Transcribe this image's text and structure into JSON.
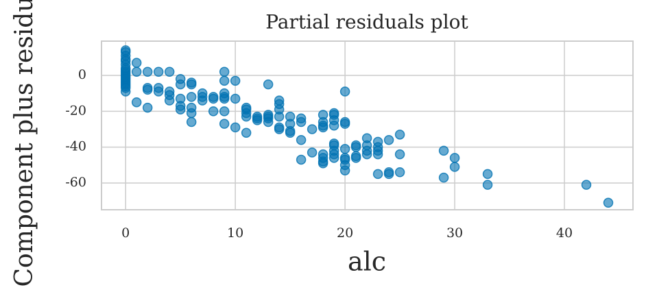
{
  "chart_data": {
    "type": "scatter",
    "title": "Partial residuals plot",
    "x_label": "alc",
    "y_label": "Component plus residual",
    "color": "#0072b2",
    "grid": true,
    "xlim": [
      -2.2,
      46.25
    ],
    "ylim": [
      -74.9,
      19.1
    ],
    "xticks": [
      0,
      10,
      20,
      30,
      40
    ],
    "yticks": [
      -60,
      -40,
      -20,
      0
    ],
    "x": [
      0,
      0,
      0,
      0,
      0,
      0,
      0,
      0,
      0,
      0,
      0,
      0,
      0,
      0,
      0,
      0,
      0,
      0,
      0,
      1,
      1,
      1,
      2,
      2,
      2,
      2,
      3,
      3,
      3,
      4,
      4,
      4,
      4,
      5,
      5,
      5,
      5,
      5,
      6,
      6,
      6,
      6,
      6,
      6,
      7,
      7,
      7,
      8,
      8,
      8,
      9,
      9,
      9,
      9,
      9,
      9,
      9,
      10,
      10,
      10,
      11,
      11,
      11,
      11,
      11,
      12,
      12,
      12,
      13,
      13,
      13,
      13,
      13,
      14,
      14,
      14,
      14,
      14,
      14,
      15,
      15,
      15,
      15,
      16,
      16,
      16,
      16,
      17,
      17,
      18,
      18,
      18,
      18,
      18,
      18,
      18,
      18,
      19,
      19,
      19,
      19,
      19,
      19,
      19,
      19,
      19,
      20,
      20,
      20,
      20,
      20,
      20,
      20,
      20,
      21,
      21,
      21,
      21,
      22,
      22,
      22,
      22,
      23,
      23,
      23,
      23,
      23,
      24,
      24,
      24,
      25,
      25,
      25,
      29,
      29,
      30,
      30,
      33,
      33,
      42,
      44
    ],
    "values": [
      14,
      13,
      11,
      9,
      8,
      6,
      4,
      3,
      2,
      1,
      0,
      -1,
      -2,
      -3,
      -4,
      -5,
      -6,
      -7,
      -9,
      7,
      2,
      -15,
      2,
      -7,
      -8,
      -18,
      2,
      -7,
      -9,
      2,
      -9,
      -11,
      -14,
      -2,
      -5,
      -13,
      -17,
      -19,
      -4,
      -5,
      -12,
      -18,
      -21,
      -26,
      -10,
      -12,
      -14,
      -12,
      -13,
      -20,
      2,
      -3,
      -10,
      -12,
      -13,
      -20,
      -27,
      -3,
      -13,
      -29,
      -18,
      -19,
      -21,
      -23,
      -32,
      -23,
      -24,
      -25,
      -5,
      -22,
      -23,
      -24,
      -26,
      -14,
      -16,
      -19,
      -23,
      -29,
      -30,
      -23,
      -27,
      -31,
      -32,
      -24,
      -26,
      -36,
      -47,
      -30,
      -43,
      -22,
      -26,
      -28,
      -29,
      -44,
      -46,
      -48,
      -49,
      -21,
      -22,
      -25,
      -28,
      -38,
      -39,
      -42,
      -44,
      -46,
      -9,
      -26,
      -27,
      -41,
      -46,
      -47,
      -50,
      -53,
      -39,
      -40,
      -45,
      -46,
      -35,
      -39,
      -42,
      -44,
      -37,
      -40,
      -42,
      -44,
      -55,
      -36,
      -54,
      -55,
      -33,
      -44,
      -54,
      -42,
      -57,
      -46,
      -51,
      -55,
      -61,
      -61,
      -71
    ]
  }
}
